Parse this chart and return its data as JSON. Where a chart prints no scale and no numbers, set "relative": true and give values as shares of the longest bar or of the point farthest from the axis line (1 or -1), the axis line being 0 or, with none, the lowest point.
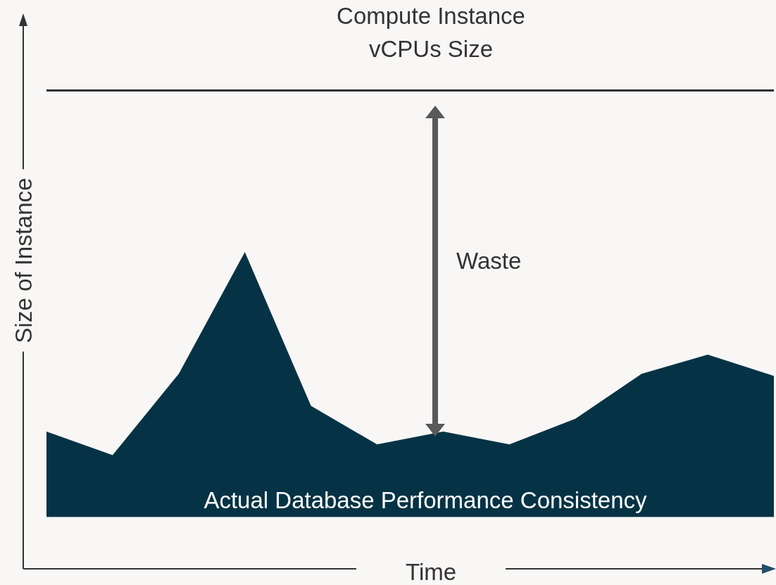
{
  "chart_data": {
    "type": "area",
    "relative": true,
    "xlabel": "Time",
    "ylabel": "Size of Instance",
    "categories": [
      null,
      null,
      null,
      null,
      null,
      null,
      null,
      null,
      null,
      null,
      null,
      null
    ],
    "series": [
      {
        "name": "Actual Database Performance Consistency",
        "color": "#053345",
        "values": [
          0.2,
          0.145,
          0.335,
          0.62,
          0.26,
          0.17,
          0.2,
          0.17,
          0.23,
          0.335,
          0.38,
          0.33
        ]
      },
      {
        "type": "line",
        "name": "Compute Instance\nvCPUs Size",
        "color": "#2b3033",
        "values": [
          1,
          1,
          1,
          1,
          1,
          1,
          1,
          1,
          1,
          1,
          1,
          1
        ]
      }
    ],
    "annotations": [
      "Waste"
    ]
  }
}
